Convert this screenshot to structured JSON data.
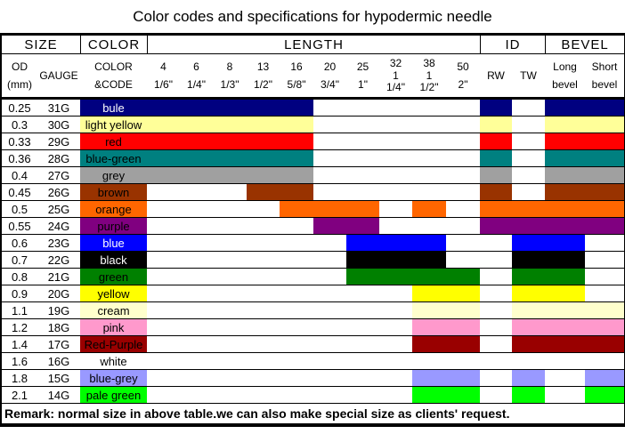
{
  "title": "Color codes and specifications for hypodermic needle",
  "header": {
    "groups": [
      {
        "label": "SIZE",
        "span": 2
      },
      {
        "label": "COLOR",
        "span": 1
      },
      {
        "label": "LENGTH",
        "span": 10
      },
      {
        "label": "ID",
        "span": 2
      },
      {
        "label": "BEVEL",
        "span": 2
      }
    ],
    "columns": [
      {
        "id": "od",
        "line1": "OD",
        "line2": "(mm)"
      },
      {
        "id": "gauge",
        "line1": "GAUGE",
        "line2": ""
      },
      {
        "id": "color",
        "line1": "COLOR",
        "line2": "&CODE"
      },
      {
        "id": "c4",
        "line1": "4",
        "line2": "1/6\""
      },
      {
        "id": "c6",
        "line1": "6",
        "line2": "1/4\""
      },
      {
        "id": "c8",
        "line1": "8",
        "line2": "1/3\""
      },
      {
        "id": "c13",
        "line1": "13",
        "line2": "1/2\""
      },
      {
        "id": "c16",
        "line1": "16",
        "line2": "5/8\""
      },
      {
        "id": "c20",
        "line1": "20",
        "line2": "3/4\""
      },
      {
        "id": "c25",
        "line1": "25",
        "line2": "1\""
      },
      {
        "id": "c32",
        "line1": "32",
        "line2": "1\n1/4\""
      },
      {
        "id": "c38",
        "line1": "38",
        "line2": "1\n1/2\""
      },
      {
        "id": "c50",
        "line1": "50",
        "line2": "2\""
      },
      {
        "id": "rw",
        "line1": "RW",
        "line2": ""
      },
      {
        "id": "tw",
        "line1": "TW",
        "line2": ""
      },
      {
        "id": "long",
        "line1": "Long",
        "line2": "bevel"
      },
      {
        "id": "short",
        "line1": "Short",
        "line2": "bevel"
      }
    ]
  },
  "rows": [
    {
      "od": "0.25",
      "gauge": "31G",
      "color_name": "bule",
      "hex": "#000080",
      "text_hex": "#FFFFFF",
      "filled": [
        "c4",
        "c6",
        "c8",
        "c13",
        "c16",
        "rw",
        "long",
        "short"
      ]
    },
    {
      "od": "0.3",
      "gauge": "30G",
      "color_name": "light yellow",
      "hex": "#FFFF99",
      "text_hex": "#000000",
      "filled": [
        "c4",
        "c6",
        "c8",
        "c13",
        "c16",
        "rw",
        "long",
        "short"
      ]
    },
    {
      "od": "0.33",
      "gauge": "29G",
      "color_name": "red",
      "hex": "#FF0000",
      "text_hex": "#000000",
      "filled": [
        "c4",
        "c6",
        "c8",
        "c13",
        "c16",
        "rw",
        "long",
        "short"
      ]
    },
    {
      "od": "0.36",
      "gauge": "28G",
      "color_name": "blue-green",
      "hex": "#008080",
      "text_hex": "#000000",
      "filled": [
        "c4",
        "c6",
        "c8",
        "c13",
        "c16",
        "rw",
        "long",
        "short"
      ]
    },
    {
      "od": "0.4",
      "gauge": "27G",
      "color_name": "grey",
      "hex": "#A0A0A0",
      "text_hex": "#000000",
      "filled": [
        "c4",
        "c6",
        "c8",
        "c13",
        "c16",
        "rw",
        "long",
        "short"
      ]
    },
    {
      "od": "0.45",
      "gauge": "26G",
      "color_name": "brown",
      "hex": "#993300",
      "text_hex": "#000000",
      "filled": [
        "c13",
        "c16",
        "rw",
        "long",
        "short"
      ]
    },
    {
      "od": "0.5",
      "gauge": "25G",
      "color_name": "orange",
      "hex": "#FF6600",
      "text_hex": "#000000",
      "filled": [
        "c16",
        "c20",
        "c25",
        "c38",
        "rw",
        "tw",
        "long",
        "short"
      ]
    },
    {
      "od": "0.55",
      "gauge": "24G",
      "color_name": "purple",
      "hex": "#800080",
      "text_hex": "#000000",
      "filled": [
        "c20",
        "c25",
        "rw",
        "tw",
        "long",
        "short"
      ]
    },
    {
      "od": "0.6",
      "gauge": "23G",
      "color_name": "blue",
      "hex": "#0000FF",
      "text_hex": "#FFFFFF",
      "filled": [
        "c25",
        "c32",
        "c38",
        "tw",
        "long"
      ]
    },
    {
      "od": "0.7",
      "gauge": "22G",
      "color_name": "black",
      "hex": "#000000",
      "text_hex": "#FFFFFF",
      "filled": [
        "c25",
        "c32",
        "c38",
        "tw",
        "long"
      ]
    },
    {
      "od": "0.8",
      "gauge": "21G",
      "color_name": "green",
      "hex": "#008000",
      "text_hex": "#000000",
      "filled": [
        "c25",
        "c32",
        "c38",
        "c50",
        "tw",
        "long"
      ]
    },
    {
      "od": "0.9",
      "gauge": "20G",
      "color_name": "yellow",
      "hex": "#FFFF00",
      "text_hex": "#000000",
      "filled": [
        "c38",
        "c50",
        "tw",
        "long"
      ]
    },
    {
      "od": "1.1",
      "gauge": "19G",
      "color_name": "cream",
      "hex": "#FFFFCC",
      "text_hex": "#000000",
      "filled": [
        "c38",
        "c50",
        "tw",
        "long",
        "short"
      ]
    },
    {
      "od": "1.2",
      "gauge": "18G",
      "color_name": "pink",
      "hex": "#FF99CC",
      "text_hex": "#000000",
      "filled": [
        "c38",
        "c50",
        "tw",
        "long",
        "short"
      ]
    },
    {
      "od": "1.4",
      "gauge": "17G",
      "color_name": "Red-Purple",
      "hex": "#990000",
      "text_hex": "#000000",
      "filled": [
        "c38",
        "c50",
        "tw",
        "long",
        "short"
      ]
    },
    {
      "od": "1.6",
      "gauge": "16G",
      "color_name": "white",
      "hex": "#FFFFFF",
      "text_hex": "#000000",
      "filled": []
    },
    {
      "od": "1.8",
      "gauge": "15G",
      "color_name": "blue-grey",
      "hex": "#9999FF",
      "text_hex": "#000000",
      "filled": [
        "c38",
        "c50",
        "tw",
        "short"
      ]
    },
    {
      "od": "2.1",
      "gauge": "14G",
      "color_name": "pale green",
      "hex": "#00FF00",
      "text_hex": "#000000",
      "filled": [
        "c38",
        "c50",
        "tw",
        "short"
      ]
    }
  ],
  "remark": "Remark: normal size in above table.we can also make special size as clients' request."
}
